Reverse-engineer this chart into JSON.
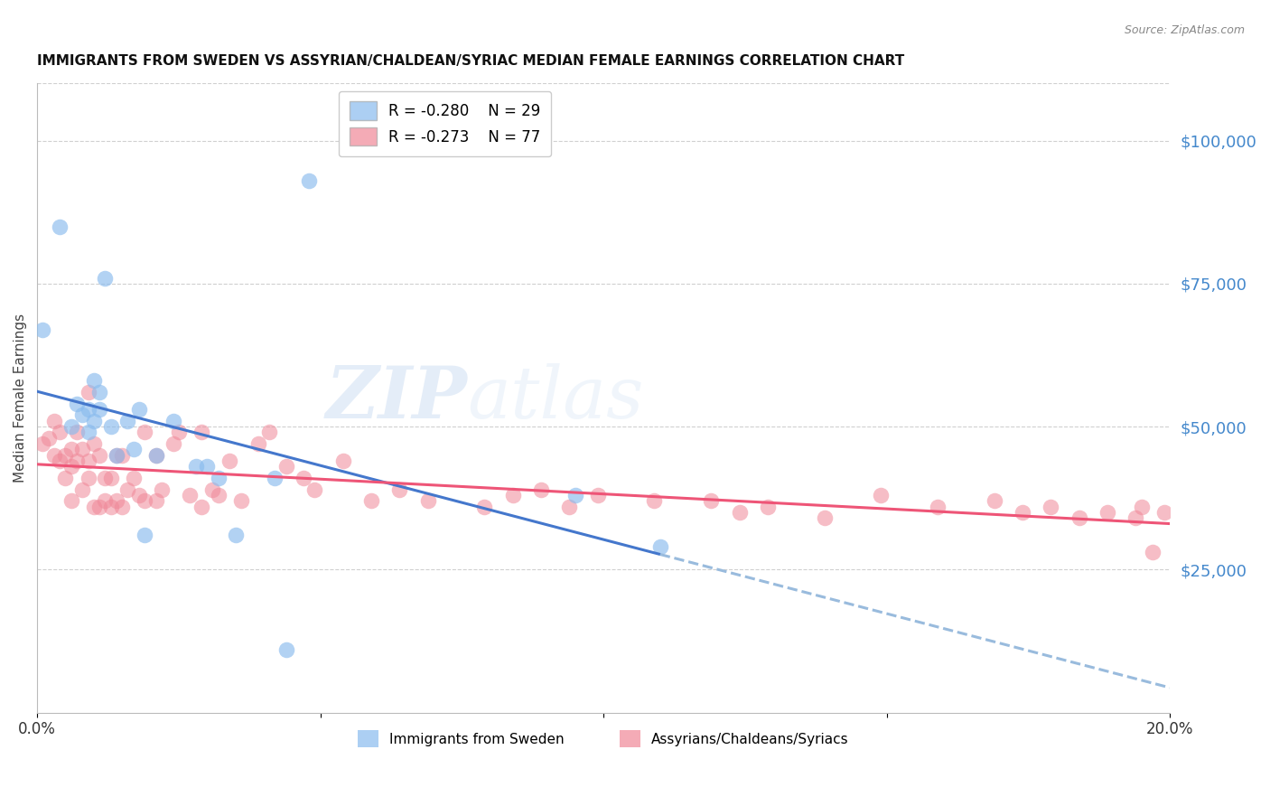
{
  "title": "IMMIGRANTS FROM SWEDEN VS ASSYRIAN/CHALDEAN/SYRIAC MEDIAN FEMALE EARNINGS CORRELATION CHART",
  "source": "Source: ZipAtlas.com",
  "ylabel_label": "Median Female Earnings",
  "xlim": [
    0.0,
    0.2
  ],
  "ylim": [
    0,
    110000
  ],
  "background_color": "#ffffff",
  "grid_color": "#d0d0d0",
  "sweden_color": "#89bbee",
  "assyrian_color": "#f08898",
  "sweden_line_color": "#4477cc",
  "assyrian_line_color": "#ee5577",
  "sweden_dashed_color": "#99bbdd",
  "right_axis_color": "#4488cc",
  "legend_sweden_r": "-0.280",
  "legend_sweden_n": "29",
  "legend_assyrian_r": "-0.273",
  "legend_assyrian_n": "77",
  "sweden_label": "Immigrants from Sweden",
  "assyrian_label": "Assyrians/Chaldeans/Syriacs",
  "sweden_scatter_x": [
    0.001,
    0.004,
    0.006,
    0.007,
    0.008,
    0.009,
    0.009,
    0.01,
    0.01,
    0.011,
    0.011,
    0.012,
    0.013,
    0.014,
    0.016,
    0.017,
    0.018,
    0.019,
    0.021,
    0.024,
    0.028,
    0.03,
    0.032,
    0.035,
    0.042,
    0.044,
    0.048,
    0.095,
    0.11
  ],
  "sweden_scatter_y": [
    67000,
    85000,
    50000,
    54000,
    52000,
    53000,
    49000,
    58000,
    51000,
    56000,
    53000,
    76000,
    50000,
    45000,
    51000,
    46000,
    53000,
    31000,
    45000,
    51000,
    43000,
    43000,
    41000,
    31000,
    41000,
    11000,
    93000,
    38000,
    29000
  ],
  "assyrian_scatter_x": [
    0.001,
    0.002,
    0.003,
    0.003,
    0.004,
    0.004,
    0.005,
    0.005,
    0.006,
    0.006,
    0.006,
    0.007,
    0.007,
    0.008,
    0.008,
    0.009,
    0.009,
    0.009,
    0.01,
    0.01,
    0.011,
    0.011,
    0.012,
    0.012,
    0.013,
    0.013,
    0.014,
    0.014,
    0.015,
    0.015,
    0.016,
    0.017,
    0.018,
    0.019,
    0.019,
    0.021,
    0.021,
    0.022,
    0.024,
    0.025,
    0.027,
    0.029,
    0.029,
    0.031,
    0.032,
    0.034,
    0.036,
    0.039,
    0.041,
    0.044,
    0.047,
    0.049,
    0.054,
    0.059,
    0.064,
    0.069,
    0.079,
    0.084,
    0.089,
    0.094,
    0.099,
    0.109,
    0.119,
    0.124,
    0.129,
    0.139,
    0.149,
    0.159,
    0.169,
    0.174,
    0.179,
    0.184,
    0.189,
    0.194,
    0.195,
    0.197,
    0.199
  ],
  "assyrian_scatter_y": [
    47000,
    48000,
    45000,
    51000,
    44000,
    49000,
    45000,
    41000,
    43000,
    46000,
    37000,
    44000,
    49000,
    46000,
    39000,
    56000,
    44000,
    41000,
    47000,
    36000,
    45000,
    36000,
    41000,
    37000,
    41000,
    36000,
    45000,
    37000,
    45000,
    36000,
    39000,
    41000,
    38000,
    49000,
    37000,
    45000,
    37000,
    39000,
    47000,
    49000,
    38000,
    36000,
    49000,
    39000,
    38000,
    44000,
    37000,
    47000,
    49000,
    43000,
    41000,
    39000,
    44000,
    37000,
    39000,
    37000,
    36000,
    38000,
    39000,
    36000,
    38000,
    37000,
    37000,
    35000,
    36000,
    34000,
    38000,
    36000,
    37000,
    35000,
    36000,
    34000,
    35000,
    34000,
    36000,
    28000,
    35000
  ]
}
